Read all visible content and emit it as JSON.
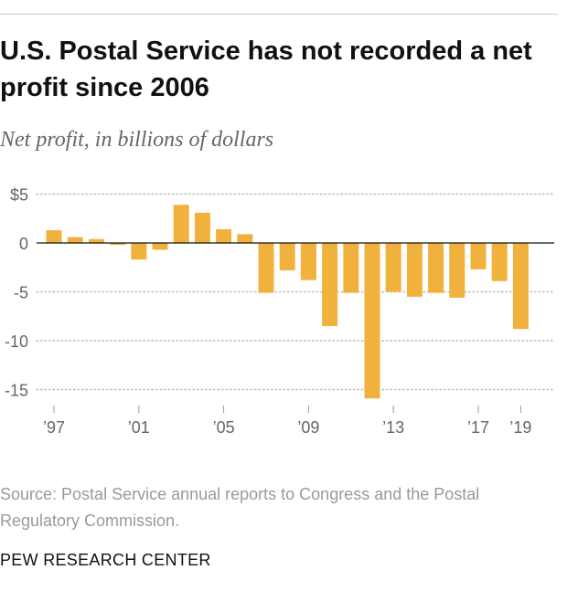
{
  "header": {
    "title": "U.S. Postal Service has not recorded a net profit since 2006",
    "subtitle": "Net profit, in billions of dollars"
  },
  "chart_data": {
    "type": "bar",
    "title": "U.S. Postal Service has not recorded a net profit since 2006",
    "subtitle": "Net profit, in billions of dollars",
    "xlabel": "",
    "ylabel": "Net profit, in billions of dollars",
    "categories": [
      "1997",
      "1998",
      "1999",
      "2000",
      "2001",
      "2002",
      "2003",
      "2004",
      "2005",
      "2006",
      "2007",
      "2008",
      "2009",
      "2010",
      "2011",
      "2012",
      "2013",
      "2014",
      "2015",
      "2016",
      "2017",
      "2018",
      "2019"
    ],
    "values": [
      1.3,
      0.6,
      0.4,
      -0.2,
      -1.7,
      -0.7,
      3.9,
      3.1,
      1.4,
      0.9,
      -5.1,
      -2.8,
      -3.8,
      -8.5,
      -5.1,
      -15.9,
      -5.0,
      -5.5,
      -5.1,
      -5.6,
      -2.7,
      -3.9,
      -8.8
    ],
    "ylim": [
      -16,
      5
    ],
    "yticks": [
      5,
      0,
      -5,
      -10,
      -15
    ],
    "ytick_labels": [
      "$5",
      "0",
      "-5",
      "-10",
      "-15"
    ],
    "xtick_labels": [
      "’97",
      "’01",
      "’05",
      "’09",
      "’13",
      "’17",
      "’19"
    ],
    "grid": true,
    "bar_color": "#f0b23c"
  },
  "footer": {
    "source": "Source: Postal Service annual reports to Congress and the Postal Regulatory Commission.",
    "brand": "PEW RESEARCH CENTER"
  }
}
